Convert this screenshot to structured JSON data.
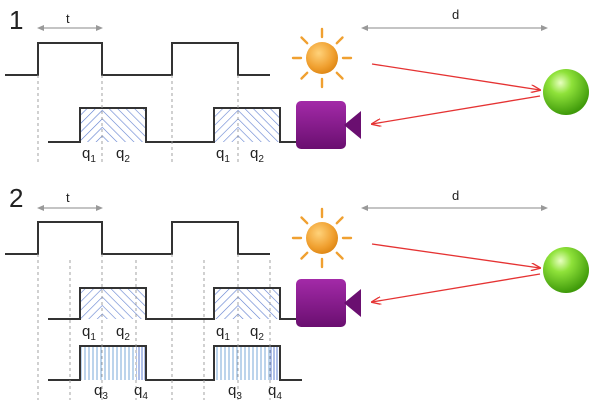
{
  "panels": [
    {
      "number": "1",
      "period_label": "t",
      "distance_label": "d",
      "windows": [
        {
          "a": "q",
          "a_sub": "1",
          "b": "q",
          "b_sub": "2"
        },
        {
          "a": "q",
          "a_sub": "1",
          "b": "q",
          "b_sub": "2"
        }
      ]
    },
    {
      "number": "2",
      "period_label": "t",
      "distance_label": "d",
      "windows": [
        {
          "a": "q",
          "a_sub": "1",
          "b": "q",
          "b_sub": "2"
        },
        {
          "a": "q",
          "a_sub": "1",
          "b": "q",
          "b_sub": "2"
        }
      ],
      "windows_lower": [
        {
          "a": "q",
          "a_sub": "3",
          "b": "q",
          "b_sub": "4"
        },
        {
          "a": "q",
          "a_sub": "3",
          "b": "q",
          "b_sub": "4"
        }
      ]
    }
  ],
  "colors": {
    "sun": "#f0a030",
    "camera": "#8a1a8f",
    "ray": "#e53333",
    "target": "#6cc81c",
    "hatch_blue": "#5f7fd0",
    "hatch_light": "#8fb8e0"
  }
}
